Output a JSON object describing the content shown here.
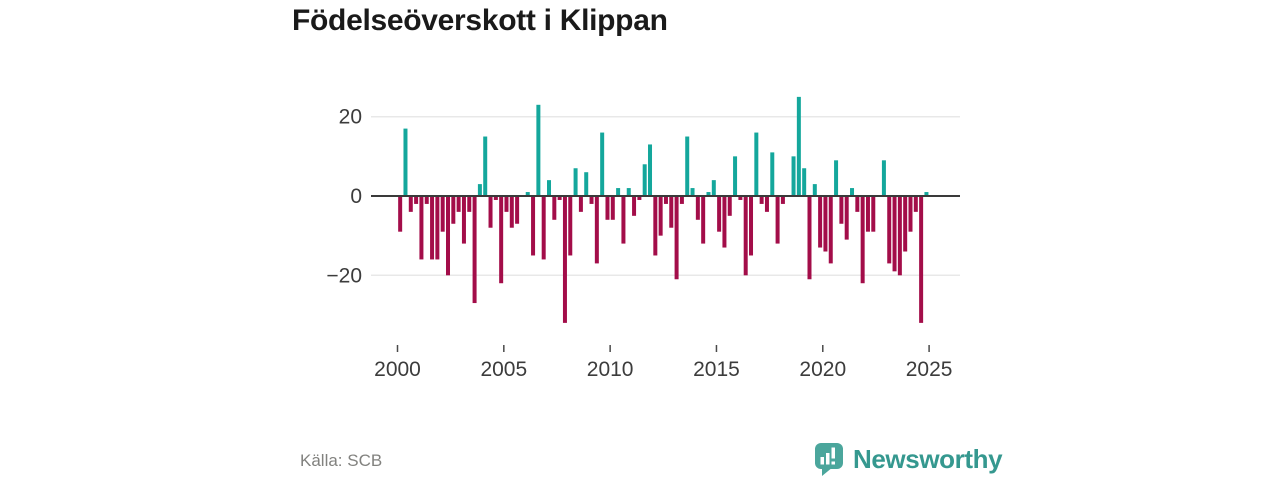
{
  "header": {
    "title": "Födelseöverskott i Klippan"
  },
  "source": {
    "label": "Källa: SCB"
  },
  "branding": {
    "name": "Newsworthy"
  },
  "colors": {
    "positive": "#14a79c",
    "negative": "#a30d49",
    "axis": "#3a3a3a",
    "grid": "#e8e8e8",
    "tick": "#4a4a4a",
    "tick_label": "#3c3c3c",
    "title_text": "#1a1a1a",
    "source_text": "#82827f",
    "brand_teal": "#35988f",
    "brand_icon_teal": "#4ba69c"
  },
  "chart_data": {
    "type": "bar",
    "title": "Födelseöverskott i Klippan",
    "xlabel": "",
    "ylabel": "",
    "frequency": "quarterly",
    "start_period": "2000-Q1",
    "end_period": "2024-Q4",
    "grid": "horizontal",
    "legend": "none",
    "ylim": [
      -34,
      26
    ],
    "x_tick_years": [
      2000,
      2005,
      2010,
      2015,
      2020,
      2025
    ],
    "x_tick_labels": [
      "2000",
      "2005",
      "2010",
      "2015",
      "2020",
      "2025"
    ],
    "y_tick_values": [
      20,
      0,
      -20
    ],
    "y_tick_labels": [
      "20",
      "0",
      "−20"
    ],
    "values": [
      -9,
      17,
      -4,
      -2,
      -16,
      -2,
      -16,
      -16,
      -9,
      -20,
      -7,
      -4,
      -12,
      -4,
      -27,
      3,
      15,
      -8,
      -1,
      -22,
      -4,
      -8,
      -7,
      0,
      1,
      -15,
      23,
      -16,
      4,
      -6,
      -1,
      -32,
      -15,
      7,
      -4,
      6,
      -2,
      -17,
      16,
      -6,
      -6,
      2,
      -12,
      2,
      -5,
      -1,
      8,
      13,
      -15,
      -10,
      -2,
      -8,
      -21,
      -2,
      15,
      2,
      -6,
      -12,
      1,
      4,
      -9,
      -13,
      -5,
      10,
      -1,
      -20,
      -15,
      16,
      -2,
      -4,
      11,
      -12,
      -2,
      0,
      10,
      25,
      7,
      -21,
      3,
      -13,
      -14,
      -17,
      9,
      -7,
      -11,
      2,
      -4,
      -22,
      -9,
      -9,
      0,
      9,
      -17,
      -19,
      -20,
      -14,
      -9,
      -4,
      -32,
      1
    ]
  }
}
